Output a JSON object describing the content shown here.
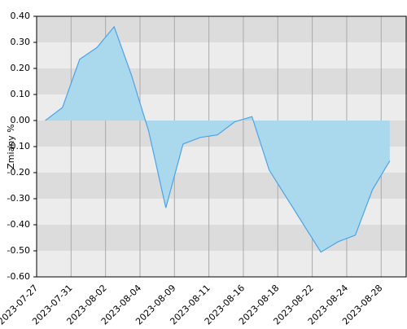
{
  "chart_data": {
    "type": "area",
    "y_label": "Zmiany %",
    "xticks": [
      "2023-07-27",
      "2023-07-31",
      "2023-08-02",
      "2023-08-04",
      "2023-08-09",
      "2023-08-11",
      "2023-08-16",
      "2023-08-18",
      "2023-08-22",
      "2023-08-24",
      "2023-08-28"
    ],
    "values": [
      0.0,
      0.05,
      0.235,
      0.28,
      0.36,
      0.175,
      -0.04,
      -0.335,
      -0.09,
      -0.065,
      -0.055,
      -0.005,
      0.015,
      -0.19,
      -0.295,
      -0.4,
      -0.505,
      -0.465,
      -0.44,
      -0.265,
      -0.155
    ],
    "color": "#aad8ec",
    "line_color": "#4da3e8",
    "ylim": [
      -0.6,
      0.4
    ],
    "yticks": [
      {
        "value": -0.6,
        "label": "-0.60"
      },
      {
        "value": -0.5,
        "label": "-0.50"
      },
      {
        "value": -0.4,
        "label": "-0.40"
      },
      {
        "value": -0.3,
        "label": "-0.30"
      },
      {
        "value": -0.2,
        "label": "-0.20"
      },
      {
        "value": -0.1,
        "label": "-0.10"
      },
      {
        "value": 0,
        "label": "0.00"
      },
      {
        "value": 0.1,
        "label": "0.10"
      },
      {
        "value": 0.2,
        "label": "0.20"
      },
      {
        "value": 0.3,
        "label": "0.30"
      },
      {
        "value": 0.4,
        "label": "0.40"
      }
    ],
    "grid": true
  }
}
